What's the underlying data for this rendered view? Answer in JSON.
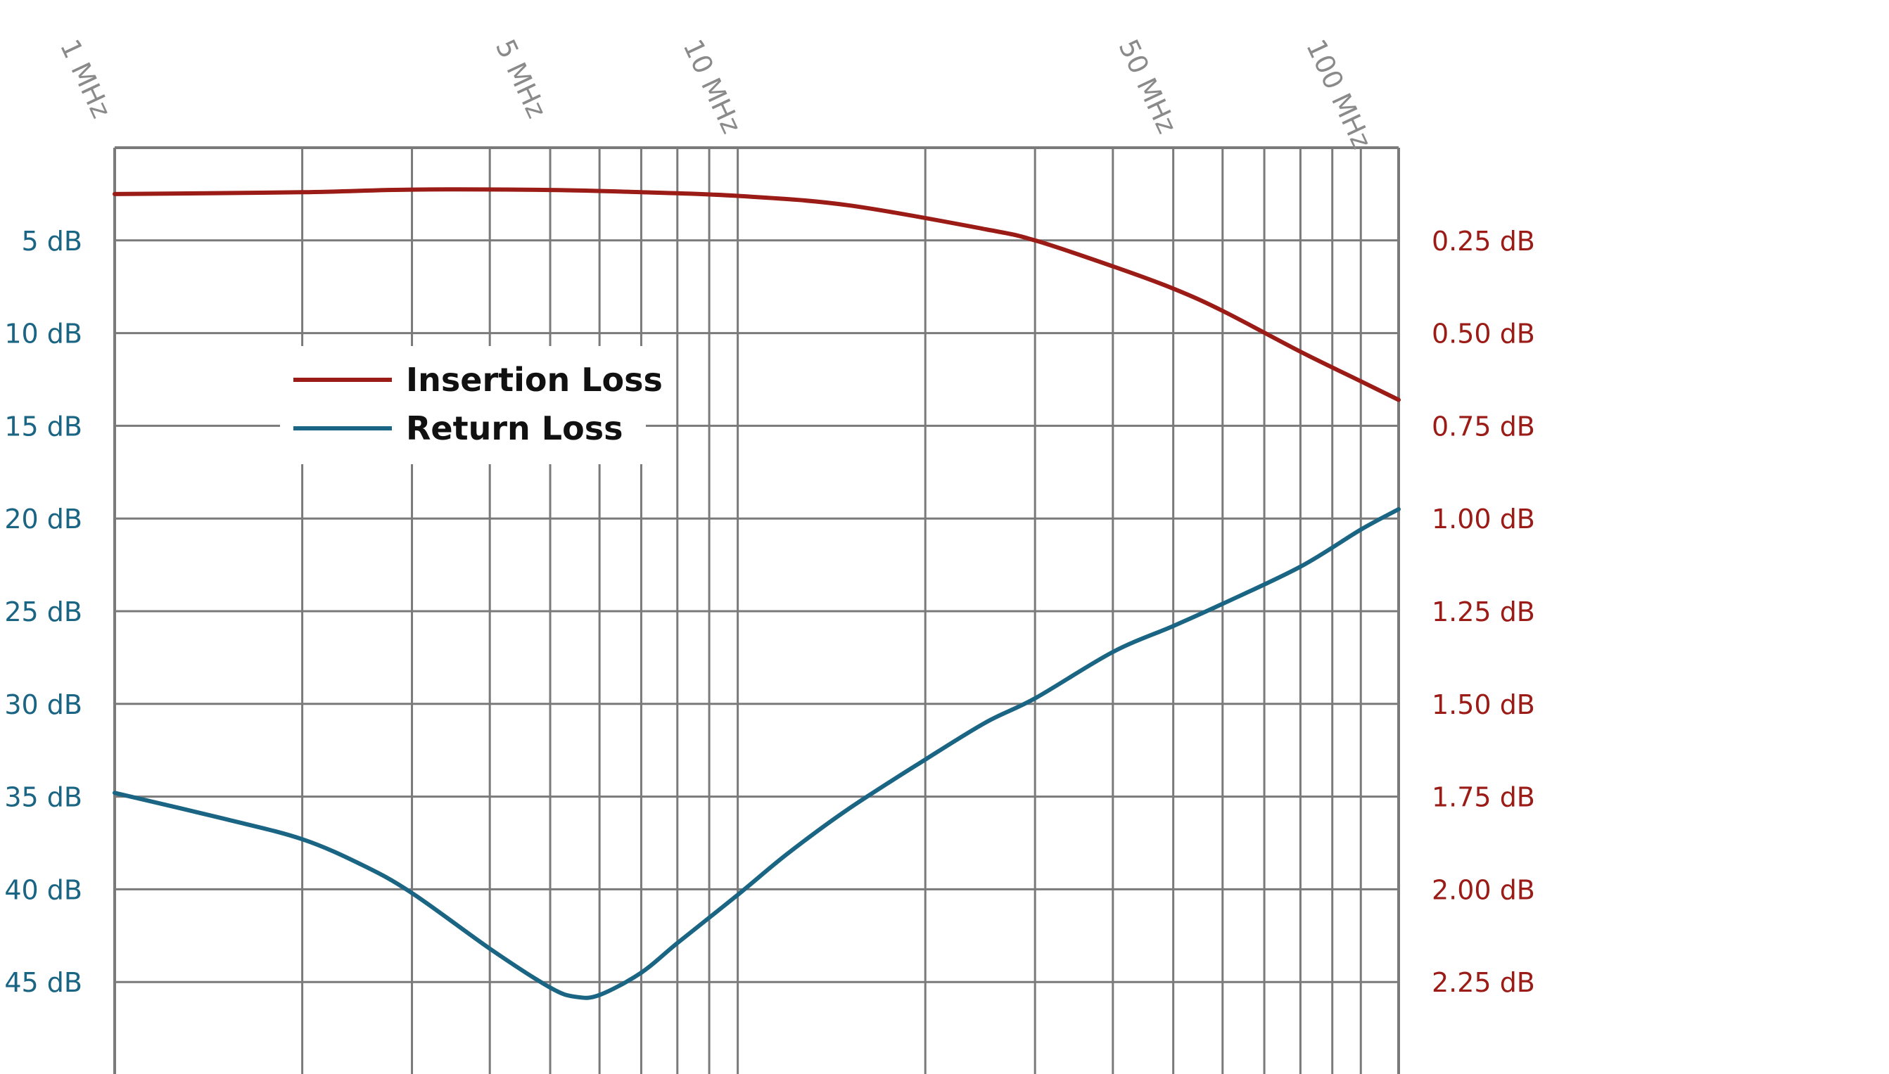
{
  "chart_data": {
    "type": "line",
    "x_scale": "log",
    "xlim": [
      1,
      115
    ],
    "x_ticks": [
      {
        "value": 1,
        "label": "1 MHz"
      },
      {
        "value": 5,
        "label": "5 MHz"
      },
      {
        "value": 10,
        "label": "10 MHz"
      },
      {
        "value": 50,
        "label": "50 MHz"
      },
      {
        "value": 100,
        "label": "100 MHz"
      }
    ],
    "y_left": {
      "range": [
        0,
        50
      ],
      "ticks": [
        {
          "value": 5,
          "label": "5 dB"
        },
        {
          "value": 10,
          "label": "10 dB"
        },
        {
          "value": 15,
          "label": "15 dB"
        },
        {
          "value": 20,
          "label": "20 dB"
        },
        {
          "value": 25,
          "label": "25 dB"
        },
        {
          "value": 30,
          "label": "30 dB"
        },
        {
          "value": 35,
          "label": "35 dB"
        },
        {
          "value": 40,
          "label": "40 dB"
        },
        {
          "value": 45,
          "label": "45 dB"
        }
      ]
    },
    "y_right": {
      "range": [
        0,
        2.5
      ],
      "ticks": [
        {
          "value": 0.25,
          "label": "0.25 dB"
        },
        {
          "value": 0.5,
          "label": "0.50 dB"
        },
        {
          "value": 0.75,
          "label": "0.75 dB"
        },
        {
          "value": 1.0,
          "label": "1.00 dB"
        },
        {
          "value": 1.25,
          "label": "1.25 dB"
        },
        {
          "value": 1.5,
          "label": "1.50 dB"
        },
        {
          "value": 1.75,
          "label": "1.75 dB"
        },
        {
          "value": 2.0,
          "label": "2.00 dB"
        },
        {
          "value": 2.25,
          "label": "2.25 dB"
        }
      ]
    },
    "grid": true,
    "legend": {
      "position": "upper-left"
    },
    "series": [
      {
        "name": "Insertion Loss",
        "axis": "right",
        "color": "#9b1b16",
        "x": [
          1,
          2,
          3,
          5,
          7,
          10,
          15,
          25,
          30,
          40,
          50,
          60,
          80,
          100,
          115
        ],
        "y": [
          0.125,
          0.12,
          0.113,
          0.114,
          0.12,
          0.13,
          0.155,
          0.22,
          0.25,
          0.32,
          0.38,
          0.44,
          0.55,
          0.63,
          0.68
        ]
      },
      {
        "name": "Return Loss",
        "axis": "left",
        "color": "#1a6583",
        "x": [
          1,
          1.5,
          2,
          2.5,
          3,
          4,
          5,
          5.5,
          6,
          7,
          8,
          10,
          12,
          15,
          20,
          25,
          30,
          40,
          50,
          60,
          80,
          100,
          115
        ],
        "y": [
          34.8,
          36.2,
          37.3,
          38.7,
          40.2,
          43.2,
          45.3,
          45.8,
          45.7,
          44.5,
          42.9,
          40.3,
          38.1,
          35.7,
          33.0,
          31.0,
          29.7,
          27.2,
          25.8,
          24.6,
          22.6,
          20.6,
          19.5
        ]
      }
    ]
  }
}
